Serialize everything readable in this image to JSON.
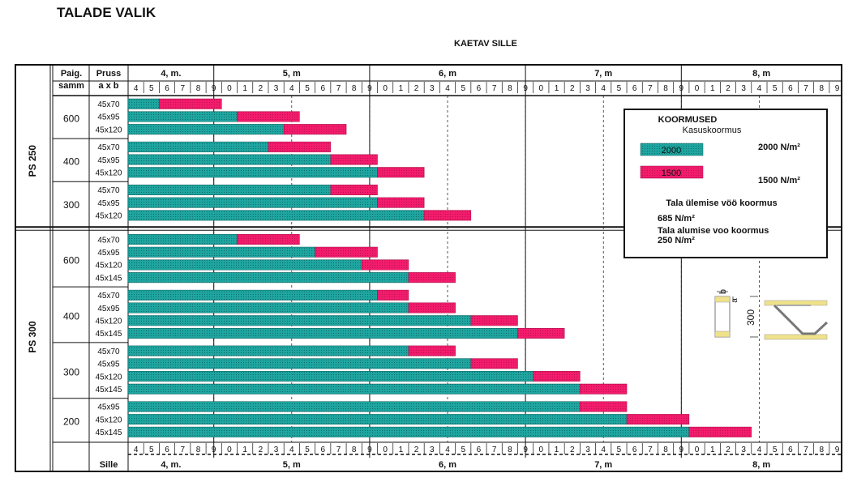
{
  "page": {
    "title": "TALADE VALIK"
  },
  "chart_data": {
    "type": "bar",
    "title": "KAETAV SILLE",
    "xlabel": "Sille",
    "x_unit": "m",
    "xlim": [
      4.4,
      8.9
    ],
    "header": {
      "group_label": "Paig. samm",
      "section_label": "Pruss a x b",
      "meter_labels": [
        {
          "meter": 4,
          "text": "4,  m."
        },
        {
          "meter": 5,
          "text": "5,  m"
        },
        {
          "meter": 6,
          "text": "6,  m"
        },
        {
          "meter": 7,
          "text": "7,  m"
        },
        {
          "meter": 8,
          "text": "8,  m"
        }
      ]
    },
    "series": [
      {
        "name": "2000",
        "load_label": "2000 N/m²",
        "color": "#1fa5a0"
      },
      {
        "name": "1500",
        "load_label": "1500 N/m²",
        "color": "#f21c6c"
      }
    ],
    "legend": {
      "title": "KOORMUSED",
      "subtitle": "Kasuskoormus",
      "top_chord_label": "Tala ülemise vöö koormus",
      "top_chord_value": "685 N/m²",
      "bottom_chord_label": "Tala alumise voo koormus",
      "bottom_chord_value": "250 N/m²",
      "position": "top-right"
    },
    "figure": {
      "b_label": "b",
      "a_label": "a",
      "h_label": "300"
    },
    "groups": [
      {
        "label": "PS 250",
        "spacings": [
          {
            "spacing": "600",
            "rows": [
              {
                "section": "45x70",
                "v2000": 4.6,
                "v1500": 5.0
              },
              {
                "section": "45x95",
                "v2000": 5.1,
                "v1500": 5.5
              },
              {
                "section": "45x120",
                "v2000": 5.4,
                "v1500": 5.8
              }
            ]
          },
          {
            "spacing": "400",
            "rows": [
              {
                "section": "45x70",
                "v2000": 5.3,
                "v1500": 5.7
              },
              {
                "section": "45x95",
                "v2000": 5.7,
                "v1500": 6.0
              },
              {
                "section": "45x120",
                "v2000": 6.0,
                "v1500": 6.3
              }
            ]
          },
          {
            "spacing": "300",
            "rows": [
              {
                "section": "45x70",
                "v2000": 5.7,
                "v1500": 6.0
              },
              {
                "section": "45x95",
                "v2000": 6.0,
                "v1500": 6.3
              },
              {
                "section": "45x120",
                "v2000": 6.3,
                "v1500": 6.6
              }
            ]
          }
        ]
      },
      {
        "label": "PS 300",
        "spacings": [
          {
            "spacing": "600",
            "rows": [
              {
                "section": "45x70",
                "v2000": 5.1,
                "v1500": 5.5
              },
              {
                "section": "45x95",
                "v2000": 5.6,
                "v1500": 6.0
              },
              {
                "section": "45x120",
                "v2000": 5.9,
                "v1500": 6.2
              },
              {
                "section": "45x145",
                "v2000": 6.2,
                "v1500": 6.5
              }
            ]
          },
          {
            "spacing": "400",
            "rows": [
              {
                "section": "45x70",
                "v2000": 6.0,
                "v1500": 6.2
              },
              {
                "section": "45x95",
                "v2000": 6.2,
                "v1500": 6.5
              },
              {
                "section": "45x120",
                "v2000": 6.6,
                "v1500": 6.9
              },
              {
                "section": "45x145",
                "v2000": 6.9,
                "v1500": 7.2
              }
            ]
          },
          {
            "spacing": "300",
            "rows": [
              {
                "section": "45x70",
                "v2000": 6.2,
                "v1500": 6.5
              },
              {
                "section": "45x95",
                "v2000": 6.6,
                "v1500": 6.9
              },
              {
                "section": "45x120",
                "v2000": 7.0,
                "v1500": 7.3
              },
              {
                "section": "45x145",
                "v2000": 7.3,
                "v1500": 7.6
              }
            ]
          },
          {
            "spacing": "200",
            "rows": [
              {
                "section": "45x95",
                "v2000": 7.3,
                "v1500": 7.6
              },
              {
                "section": "45x120",
                "v2000": 7.6,
                "v1500": 8.0
              },
              {
                "section": "45x145",
                "v2000": 8.0,
                "v1500": 8.4
              }
            ]
          }
        ]
      }
    ]
  }
}
